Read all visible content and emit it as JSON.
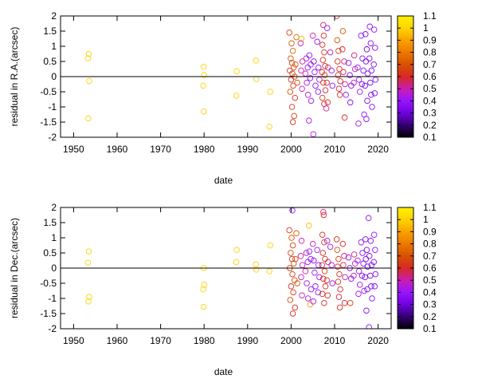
{
  "chart_data": [
    {
      "type": "scatter",
      "xlabel": "date",
      "ylabel": "residual in R.A.(arcsec)",
      "xlim": [
        1947,
        2023
      ],
      "ylim": [
        -2,
        2
      ],
      "xticks": [
        "1950",
        "1960",
        "1970",
        "1980",
        "1990",
        "2000",
        "2010",
        "2020"
      ],
      "yticks": [
        "-2",
        "-1.5",
        "-1",
        "-0.5",
        "0",
        "0.5",
        "1",
        "1.5",
        "2"
      ],
      "colorbar": {
        "range": [
          0.1,
          1.1
        ],
        "ticks": [
          "0.1",
          "0.2",
          "0.3",
          "0.4",
          "0.5",
          "0.6",
          "0.7",
          "0.8",
          "0.9",
          "1",
          "1.1"
        ]
      },
      "zero_line": true,
      "points": [
        [
          1953.5,
          0.75,
          1.0
        ],
        [
          1953.3,
          0.6,
          1.0
        ],
        [
          1953.6,
          -0.15,
          1.0
        ],
        [
          1953.4,
          -1.38,
          1.0
        ],
        [
          1979.9,
          0.32,
          1.0
        ],
        [
          1980.0,
          0.05,
          1.0
        ],
        [
          1979.8,
          -0.3,
          1.0
        ],
        [
          1979.9,
          -1.15,
          1.0
        ],
        [
          1987.5,
          0.18,
          1.0
        ],
        [
          1987.4,
          -0.63,
          1.0
        ],
        [
          1991.9,
          0.53,
          1.0
        ],
        [
          1992.0,
          -0.08,
          1.0
        ],
        [
          1995.2,
          -0.5,
          1.0
        ],
        [
          1995.0,
          -1.65,
          1.0
        ],
        [
          1999.6,
          1.45,
          0.65
        ],
        [
          2000.1,
          1.1,
          0.7
        ],
        [
          2000.4,
          0.85,
          0.75
        ],
        [
          1999.9,
          0.6,
          0.7
        ],
        [
          2000.2,
          0.45,
          0.65
        ],
        [
          2000.6,
          0.3,
          0.7
        ],
        [
          1999.7,
          0.2,
          0.62
        ],
        [
          2000.3,
          0.1,
          0.66
        ],
        [
          2000.8,
          0.0,
          0.7
        ],
        [
          2000.0,
          -0.1,
          0.6
        ],
        [
          2000.5,
          -0.3,
          0.65
        ],
        [
          1999.8,
          -0.5,
          0.7
        ],
        [
          2000.9,
          -0.7,
          0.62
        ],
        [
          2000.2,
          -1.0,
          0.64
        ],
        [
          2000.7,
          -1.3,
          0.66
        ],
        [
          2000.4,
          -1.5,
          0.6
        ],
        [
          2001.2,
          1.3,
          0.75
        ],
        [
          2001.0,
          0.4,
          0.72
        ],
        [
          2001.4,
          -0.2,
          0.68
        ],
        [
          2002.4,
          1.25,
          0.95
        ],
        [
          2002.2,
          1.1,
          0.5
        ],
        [
          2002.6,
          0.5,
          0.52
        ],
        [
          2002.3,
          0.2,
          0.5
        ],
        [
          2002.5,
          -0.4,
          0.48
        ],
        [
          2003.5,
          0.6,
          0.45
        ],
        [
          2003.8,
          0.3,
          0.42
        ],
        [
          2003.3,
          0.1,
          0.5
        ],
        [
          2003.6,
          -0.2,
          0.44
        ],
        [
          2003.9,
          -0.6,
          0.46
        ],
        [
          2004.2,
          0.7,
          0.4
        ],
        [
          2004.5,
          0.4,
          0.42
        ],
        [
          2004.4,
          -0.05,
          0.38
        ],
        [
          2004.6,
          -0.8,
          0.4
        ],
        [
          2004.1,
          -1.45,
          0.42
        ],
        [
          2005.0,
          1.35,
          0.5
        ],
        [
          2005.2,
          0.5,
          0.35
        ],
        [
          2005.4,
          0.15,
          0.4
        ],
        [
          2005.6,
          -0.3,
          0.38
        ],
        [
          2005.1,
          -1.9,
          0.45
        ],
        [
          2006.0,
          1.15,
          0.42
        ],
        [
          2006.3,
          0.3,
          0.4
        ],
        [
          2006.5,
          -0.1,
          0.45
        ],
        [
          2006.2,
          -0.5,
          0.4
        ],
        [
          2007.4,
          1.7,
          0.55
        ],
        [
          2007.5,
          1.35,
          0.6
        ],
        [
          2007.2,
          1.05,
          0.62
        ],
        [
          2007.6,
          0.8,
          0.65
        ],
        [
          2007.3,
          0.55,
          0.6
        ],
        [
          2007.8,
          0.35,
          0.62
        ],
        [
          2007.1,
          0.15,
          0.6
        ],
        [
          2007.7,
          0.05,
          0.66
        ],
        [
          2007.4,
          -0.2,
          0.62
        ],
        [
          2007.9,
          -0.45,
          0.6
        ],
        [
          2007.2,
          -0.7,
          0.64
        ],
        [
          2007.6,
          -0.9,
          0.6
        ],
        [
          2008.3,
          1.6,
          0.4
        ],
        [
          2008.5,
          0.3,
          0.55
        ],
        [
          2008.2,
          -0.2,
          0.6
        ],
        [
          2008.4,
          -0.85,
          0.62
        ],
        [
          2008.1,
          -1.05,
          0.5
        ],
        [
          2009.0,
          0.8,
          0.45
        ],
        [
          2009.3,
          0.2,
          0.42
        ],
        [
          2009.5,
          -0.3,
          0.4
        ],
        [
          2010.5,
          2.0,
          0.6
        ],
        [
          2010.6,
          1.2,
          0.7
        ],
        [
          2010.9,
          0.85,
          0.65
        ],
        [
          2010.7,
          0.5,
          0.6
        ],
        [
          2011.1,
          0.25,
          0.62
        ],
        [
          2010.8,
          0.05,
          0.64
        ],
        [
          2011.3,
          -0.15,
          0.6
        ],
        [
          2011.0,
          -0.4,
          0.58
        ],
        [
          2011.2,
          -0.6,
          0.62
        ],
        [
          2011.9,
          1.5,
          0.7
        ],
        [
          2011.8,
          0.9,
          0.6
        ],
        [
          2012.2,
          0.5,
          0.55
        ],
        [
          2012.0,
          0.15,
          0.58
        ],
        [
          2012.4,
          -0.25,
          0.52
        ],
        [
          2012.6,
          -0.6,
          0.4
        ],
        [
          2012.3,
          -1.35,
          0.6
        ],
        [
          2013.2,
          0.45,
          0.38
        ],
        [
          2013.5,
          0.05,
          0.35
        ],
        [
          2013.8,
          -0.3,
          0.36
        ],
        [
          2013.6,
          -0.85,
          0.35
        ],
        [
          2014.5,
          0.7,
          0.55
        ],
        [
          2014.7,
          0.25,
          0.5
        ],
        [
          2014.4,
          -0.2,
          0.48
        ],
        [
          2015.3,
          0.3,
          0.42
        ],
        [
          2015.6,
          -0.1,
          0.44
        ],
        [
          2015.8,
          -0.5,
          0.42
        ],
        [
          2015.5,
          -1.55,
          0.45
        ],
        [
          2016.1,
          1.35,
          0.38
        ],
        [
          2016.4,
          0.6,
          0.35
        ],
        [
          2016.6,
          0.2,
          0.38
        ],
        [
          2016.3,
          -0.25,
          0.36
        ],
        [
          2016.8,
          -1.25,
          0.4
        ],
        [
          2017.1,
          1.4,
          0.35
        ],
        [
          2017.4,
          0.9,
          0.32
        ],
        [
          2017.2,
          0.5,
          0.34
        ],
        [
          2017.6,
          0.1,
          0.35
        ],
        [
          2017.0,
          -0.3,
          0.33
        ],
        [
          2017.5,
          -0.8,
          0.34
        ],
        [
          2017.3,
          -1.4,
          0.35
        ],
        [
          2018.1,
          1.65,
          0.38
        ],
        [
          2018.3,
          1.1,
          0.36
        ],
        [
          2018.0,
          0.6,
          0.34
        ],
        [
          2018.5,
          0.2,
          0.35
        ],
        [
          2018.2,
          -0.2,
          0.33
        ],
        [
          2018.4,
          -0.6,
          0.34
        ],
        [
          2018.6,
          -1.0,
          0.36
        ],
        [
          2019.1,
          1.55,
          0.4
        ],
        [
          2019.3,
          0.95,
          0.38
        ],
        [
          2019.0,
          0.4,
          0.36
        ],
        [
          2019.4,
          -0.1,
          0.37
        ],
        [
          2019.2,
          -0.55,
          0.35
        ]
      ]
    },
    {
      "type": "scatter",
      "xlabel": "date",
      "ylabel": "residual in Dec.(arcsec)",
      "xlim": [
        1947,
        2023
      ],
      "ylim": [
        -2,
        2
      ],
      "xticks": [
        "1950",
        "1960",
        "1970",
        "1980",
        "1990",
        "2000",
        "2010",
        "2020"
      ],
      "yticks": [
        "-2",
        "-1.5",
        "-1",
        "-0.5",
        "0",
        "0.5",
        "1",
        "1.5",
        "2"
      ],
      "colorbar": {
        "range": [
          0.1,
          1.1
        ],
        "ticks": [
          "0.1",
          "0.2",
          "0.3",
          "0.4",
          "0.5",
          "0.6",
          "0.7",
          "0.8",
          "0.9",
          "1",
          "1.1"
        ]
      },
      "zero_line": true,
      "points": [
        [
          1953.5,
          0.55,
          1.0
        ],
        [
          1953.3,
          0.18,
          1.0
        ],
        [
          1953.6,
          -0.95,
          1.0
        ],
        [
          1953.4,
          -1.1,
          1.0
        ],
        [
          1979.9,
          0.0,
          1.0
        ],
        [
          1980.0,
          -0.55,
          1.0
        ],
        [
          1979.8,
          -0.7,
          1.0
        ],
        [
          1979.9,
          -1.28,
          1.0
        ],
        [
          1987.5,
          0.6,
          1.0
        ],
        [
          1987.4,
          0.2,
          1.0
        ],
        [
          1991.9,
          0.12,
          1.0
        ],
        [
          1992.0,
          -0.05,
          1.0
        ],
        [
          1995.2,
          0.75,
          1.0
        ],
        [
          1995.0,
          -0.1,
          1.0
        ],
        [
          1999.6,
          1.25,
          0.65
        ],
        [
          2000.1,
          1.0,
          0.7
        ],
        [
          2000.4,
          0.75,
          0.66
        ],
        [
          1999.9,
          0.5,
          0.68
        ],
        [
          2000.2,
          0.3,
          0.62
        ],
        [
          2000.6,
          0.15,
          0.7
        ],
        [
          1999.7,
          0.0,
          0.64
        ],
        [
          2000.3,
          -0.2,
          0.66
        ],
        [
          2000.8,
          -0.4,
          0.7
        ],
        [
          2000.0,
          -0.6,
          0.6
        ],
        [
          2000.5,
          -0.8,
          0.65
        ],
        [
          1999.8,
          -1.05,
          0.7
        ],
        [
          2000.9,
          -1.3,
          0.62
        ],
        [
          2000.4,
          -1.5,
          0.6
        ],
        [
          2000.3,
          1.9,
          0.4
        ],
        [
          2001.2,
          1.15,
          0.72
        ],
        [
          2001.0,
          0.3,
          0.68
        ],
        [
          2001.4,
          -0.5,
          0.7
        ],
        [
          2002.4,
          0.9,
          0.5
        ],
        [
          2002.2,
          0.4,
          0.52
        ],
        [
          2002.6,
          0.1,
          0.5
        ],
        [
          2002.3,
          -0.3,
          0.48
        ],
        [
          2002.5,
          -0.9,
          0.5
        ],
        [
          2003.5,
          0.5,
          0.45
        ],
        [
          2003.8,
          0.2,
          0.42
        ],
        [
          2003.3,
          -0.1,
          0.5
        ],
        [
          2003.6,
          -0.5,
          0.44
        ],
        [
          2003.9,
          -1.0,
          0.46
        ],
        [
          2004.2,
          0.55,
          0.4
        ],
        [
          2004.5,
          0.3,
          0.42
        ],
        [
          2004.4,
          -1.2,
          0.9
        ],
        [
          2004.6,
          -0.7,
          0.4
        ],
        [
          2004.1,
          1.4,
          0.95
        ],
        [
          2005.0,
          0.8,
          0.5
        ],
        [
          2005.2,
          0.25,
          0.35
        ],
        [
          2005.4,
          -0.15,
          0.4
        ],
        [
          2005.6,
          -0.6,
          0.38
        ],
        [
          2005.1,
          -1.1,
          0.45
        ],
        [
          2006.0,
          0.6,
          0.42
        ],
        [
          2006.3,
          0.1,
          0.4
        ],
        [
          2006.5,
          -0.3,
          0.45
        ],
        [
          2006.2,
          -0.8,
          0.4
        ],
        [
          2007.4,
          1.85,
          0.55
        ],
        [
          2007.5,
          1.75,
          0.6
        ],
        [
          2007.2,
          1.1,
          0.62
        ],
        [
          2007.6,
          0.85,
          0.65
        ],
        [
          2007.3,
          0.5,
          0.6
        ],
        [
          2007.8,
          0.3,
          0.62
        ],
        [
          2007.1,
          0.1,
          0.6
        ],
        [
          2007.7,
          -0.1,
          0.66
        ],
        [
          2007.4,
          -0.35,
          0.62
        ],
        [
          2007.9,
          -0.6,
          0.6
        ],
        [
          2007.2,
          -0.85,
          0.64
        ],
        [
          2007.6,
          -1.15,
          0.6
        ],
        [
          2008.3,
          0.9,
          0.45
        ],
        [
          2008.5,
          0.2,
          0.55
        ],
        [
          2008.2,
          -0.4,
          0.6
        ],
        [
          2008.4,
          -0.9,
          0.62
        ],
        [
          2009.0,
          0.7,
          0.45
        ],
        [
          2009.3,
          0.1,
          0.42
        ],
        [
          2009.5,
          -0.5,
          0.4
        ],
        [
          2010.5,
          0.95,
          0.6
        ],
        [
          2010.6,
          0.6,
          0.7
        ],
        [
          2010.9,
          0.3,
          0.65
        ],
        [
          2010.7,
          0.05,
          0.6
        ],
        [
          2011.1,
          -0.2,
          0.62
        ],
        [
          2010.8,
          -0.45,
          0.64
        ],
        [
          2011.3,
          -0.7,
          0.6
        ],
        [
          2011.0,
          -0.95,
          0.58
        ],
        [
          2011.2,
          -1.3,
          0.62
        ],
        [
          2011.9,
          0.8,
          0.6
        ],
        [
          2012.2,
          0.4,
          0.55
        ],
        [
          2012.0,
          0.1,
          0.58
        ],
        [
          2012.4,
          -0.3,
          0.52
        ],
        [
          2012.3,
          -1.15,
          0.6
        ],
        [
          2013.2,
          0.35,
          0.38
        ],
        [
          2013.5,
          0.0,
          0.35
        ],
        [
          2013.8,
          -0.35,
          0.36
        ],
        [
          2013.6,
          -1.15,
          0.65
        ],
        [
          2014.5,
          0.45,
          0.55
        ],
        [
          2014.7,
          0.15,
          0.5
        ],
        [
          2014.4,
          -0.25,
          0.48
        ],
        [
          2015.3,
          0.25,
          0.42
        ],
        [
          2015.6,
          -0.1,
          0.44
        ],
        [
          2015.8,
          -0.55,
          0.42
        ],
        [
          2015.5,
          -0.85,
          0.45
        ],
        [
          2016.1,
          0.85,
          0.38
        ],
        [
          2016.4,
          0.5,
          0.35
        ],
        [
          2016.6,
          0.15,
          0.38
        ],
        [
          2016.3,
          -0.25,
          0.36
        ],
        [
          2016.8,
          -0.75,
          0.4
        ],
        [
          2017.1,
          0.95,
          0.35
        ],
        [
          2017.4,
          0.6,
          0.32
        ],
        [
          2017.2,
          0.3,
          0.34
        ],
        [
          2017.6,
          0.05,
          0.35
        ],
        [
          2017.0,
          -0.3,
          0.33
        ],
        [
          2017.5,
          -0.7,
          0.34
        ],
        [
          2017.3,
          -1.4,
          0.35
        ],
        [
          2017.8,
          1.65,
          0.4
        ],
        [
          2018.3,
          0.9,
          0.36
        ],
        [
          2018.0,
          0.4,
          0.34
        ],
        [
          2018.5,
          0.1,
          0.35
        ],
        [
          2018.2,
          -0.25,
          0.33
        ],
        [
          2018.4,
          -0.6,
          0.34
        ],
        [
          2018.6,
          -1.0,
          0.36
        ],
        [
          2017.9,
          -1.95,
          0.38
        ],
        [
          2019.1,
          1.1,
          0.4
        ],
        [
          2019.3,
          0.6,
          0.38
        ],
        [
          2019.0,
          0.2,
          0.36
        ],
        [
          2019.4,
          -0.2,
          0.37
        ],
        [
          2019.2,
          -0.6,
          0.35
        ]
      ]
    }
  ]
}
